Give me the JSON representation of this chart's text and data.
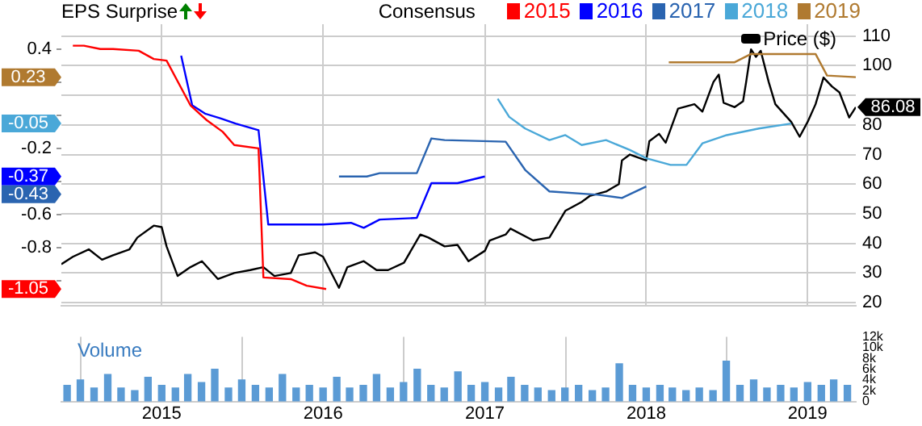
{
  "chart_data": [
    {
      "type": "line",
      "title": "EPS Surprise",
      "legend_title": "Consensus",
      "legend": "top",
      "grid": true,
      "marker": "none",
      "tick_labels": "y",
      "xlim": [
        "2014-05-19",
        "2019-04-20"
      ],
      "xticks": [
        "2015",
        "2016",
        "2017",
        "2018",
        "2019"
      ],
      "ylim": [
        -1.15,
        0.55
      ],
      "yticks": [
        0.4,
        {
          "value": 0.2,
          "label": null
        },
        {
          "value": 0,
          "label": null
        },
        -0.2,
        {
          "value": -0.4,
          "label": null
        },
        -0.6,
        -0.8,
        {
          "value": -1,
          "label": null
        }
      ],
      "y2lim": [
        19,
        114
      ],
      "y2ticks": [
        20,
        30,
        40,
        50,
        60,
        70,
        80,
        {
          "value": 90,
          "label": null
        },
        100,
        110
      ],
      "annotations": [
        "-1.05",
        "-0.37",
        "-0.43",
        "-0.05",
        "0.23",
        "86.08"
      ],
      "series": [
        {
          "name": "2015",
          "color": "#ff0000",
          "axis": "y",
          "x": [
            "2014-06-14",
            "2014-07-09",
            "2014-08-15",
            "2014-09-13",
            "2014-11-10",
            "2014-12-14",
            "2015-01-12",
            "2015-03-07",
            "2015-04-13",
            "2015-05-19",
            "2015-06-14",
            "2015-08-08",
            "2015-08-19",
            "2015-10-20",
            "2015-11-25",
            "2016-01-08"
          ],
          "values": [
            0.42,
            0.42,
            0.4,
            0.4,
            0.39,
            0.34,
            0.33,
            0.06,
            -0.03,
            -0.1,
            -0.18,
            -0.2,
            -0.98,
            -0.99,
            -1.03,
            -1.05
          ]
        },
        {
          "name": "2016",
          "color": "#0000ff",
          "axis": "y",
          "x": [
            "2015-02-14",
            "2015-03-11",
            "2015-04-09",
            "2015-05-15",
            "2015-06-17",
            "2015-08-08",
            "2015-08-30",
            "2016-01-01",
            "2016-03-04",
            "2016-04-02",
            "2016-05-08",
            "2016-07-31",
            "2016-09-02",
            "2016-10-31",
            "2017-01-01"
          ],
          "values": [
            0.36,
            0.06,
            0.01,
            -0.02,
            -0.05,
            -0.09,
            -0.66,
            -0.66,
            -0.65,
            -0.68,
            -0.63,
            -0.62,
            -0.41,
            -0.41,
            -0.37
          ]
        },
        {
          "name": "2017",
          "color": "#2a64b0",
          "axis": "y",
          "x": [
            "2016-02-06",
            "2016-04-09",
            "2016-05-08",
            "2016-07-31",
            "2016-09-02",
            "2016-10-02",
            "2017-02-17",
            "2017-04-02",
            "2017-05-27",
            "2017-09-13",
            "2017-11-07",
            "2018-01-01"
          ],
          "values": [
            -0.37,
            -0.37,
            -0.35,
            -0.35,
            -0.14,
            -0.15,
            -0.16,
            -0.33,
            -0.46,
            -0.48,
            -0.5,
            -0.43
          ]
        },
        {
          "name": "2018",
          "color": "#4aa8d8",
          "axis": "y",
          "x": [
            "2017-01-30",
            "2017-02-25",
            "2017-04-02",
            "2017-05-27",
            "2017-07-02",
            "2017-08-08",
            "2017-10-02",
            "2017-11-25",
            "2018-01-01",
            "2018-02-25",
            "2018-04-02",
            "2018-05-08",
            "2018-07-02",
            "2018-09-13",
            "2018-11-25"
          ],
          "values": [
            0.1,
            -0.01,
            -0.08,
            -0.15,
            -0.12,
            -0.18,
            -0.15,
            -0.21,
            -0.26,
            -0.3,
            -0.3,
            -0.17,
            -0.12,
            -0.08,
            -0.05
          ]
        },
        {
          "name": "2019",
          "color": "#b07a30",
          "axis": "y",
          "x": [
            "2018-02-21",
            "2018-07-20",
            "2018-08-26",
            "2019-01-19",
            "2019-02-14",
            "2019-04-20"
          ],
          "values": [
            0.32,
            0.32,
            0.37,
            0.37,
            0.24,
            0.23
          ]
        },
        {
          "name": "Price ($)",
          "color": "#000000",
          "axis": "y2",
          "x": [
            "2014-05-19",
            "2014-06-14",
            "2014-07-20",
            "2014-08-19",
            "2014-09-13",
            "2014-10-20",
            "2014-11-07",
            "2014-12-14",
            "2015-01-01",
            "2015-01-12",
            "2015-02-06",
            "2015-03-07",
            "2015-04-02",
            "2015-05-08",
            "2015-06-14",
            "2015-07-20",
            "2015-08-19",
            "2015-09-13",
            "2015-10-20",
            "2015-11-07",
            "2015-12-14",
            "2016-01-01",
            "2016-02-06",
            "2016-02-25",
            "2016-04-02",
            "2016-05-01",
            "2016-05-27",
            "2016-07-02",
            "2016-08-08",
            "2016-08-26",
            "2016-10-02",
            "2016-10-31",
            "2016-11-25",
            "2017-01-01",
            "2017-01-12",
            "2017-02-17",
            "2017-02-28",
            "2017-04-20",
            "2017-05-27",
            "2017-07-02",
            "2017-08-08",
            "2017-08-26",
            "2017-10-02",
            "2017-10-31",
            "2017-11-07",
            "2017-11-25",
            "2018-01-01",
            "2018-01-08",
            "2018-01-30",
            "2018-02-14",
            "2018-03-14",
            "2018-04-20",
            "2018-05-08",
            "2018-06-02",
            "2018-06-14",
            "2018-06-25",
            "2018-07-20",
            "2018-08-08",
            "2018-08-15",
            "2018-08-26",
            "2018-09-06",
            "2018-09-17",
            "2018-10-05",
            "2018-10-20",
            "2018-11-25",
            "2018-12-14",
            "2019-01-01",
            "2019-01-19",
            "2019-02-06",
            "2019-02-25",
            "2019-03-14",
            "2019-04-05",
            "2019-04-20"
          ],
          "values": [
            33,
            35.5,
            38,
            34.5,
            36,
            38,
            42,
            46,
            45.5,
            39,
            29,
            32,
            34,
            28,
            30,
            31,
            32,
            29,
            30,
            36,
            37,
            35.5,
            25,
            32,
            34,
            31,
            31,
            33.5,
            43,
            42,
            39,
            39.5,
            34,
            37.5,
            41,
            43,
            45,
            41,
            42,
            51,
            54,
            56,
            57.5,
            60,
            68,
            70,
            68,
            74.5,
            77,
            74,
            85.5,
            87,
            84.5,
            94.5,
            97,
            87.5,
            86,
            88,
            94.5,
            105.5,
            103,
            105,
            94.5,
            87,
            81,
            76,
            81,
            87,
            96,
            93,
            91,
            82.5,
            86
          ]
        }
      ]
    },
    {
      "type": "bar",
      "ylabel": "Volume",
      "grid": "x",
      "color": "#5b9bd5",
      "xlim": [
        "2014-05-19",
        "2019-04-20"
      ],
      "xticks": [
        "2015",
        "2016",
        "2017",
        "2018",
        "2019"
      ],
      "ylim": [
        0,
        12000
      ],
      "yticks": [
        0,
        {
          "value": 2000,
          "label": "2k"
        },
        {
          "value": 4000,
          "label": "4k"
        },
        {
          "value": 6000,
          "label": "6k"
        },
        {
          "value": 8000,
          "label": "8k"
        },
        {
          "value": 10000,
          "label": "10k"
        },
        {
          "value": 12000,
          "label": "12k"
        }
      ],
      "x": [
        "2014-06",
        "2014-07",
        "2014-08",
        "2014-09",
        "2014-10",
        "2014-11",
        "2014-12",
        "2015-01",
        "2015-02",
        "2015-03",
        "2015-04",
        "2015-05",
        "2015-06",
        "2015-07",
        "2015-08",
        "2015-09",
        "2015-10",
        "2015-11",
        "2015-12",
        "2016-01",
        "2016-02",
        "2016-03",
        "2016-04",
        "2016-05",
        "2016-06",
        "2016-07",
        "2016-08",
        "2016-09",
        "2016-10",
        "2016-11",
        "2016-12",
        "2017-01",
        "2017-02",
        "2017-03",
        "2017-04",
        "2017-05",
        "2017-06",
        "2017-07",
        "2017-08",
        "2017-09",
        "2017-10",
        "2017-11",
        "2017-12",
        "2018-01",
        "2018-02",
        "2018-03",
        "2018-04",
        "2018-05",
        "2018-06",
        "2018-07",
        "2018-08",
        "2018-09",
        "2018-10",
        "2018-11",
        "2018-12",
        "2019-01",
        "2019-02",
        "2019-03",
        "2019-04"
      ],
      "values": [
        3000,
        4000,
        2500,
        5000,
        2500,
        2000,
        4500,
        3000,
        2500,
        5000,
        3500,
        6000,
        2500,
        4000,
        3000,
        2500,
        5000,
        2500,
        3000,
        2500,
        4500,
        2500,
        3000,
        5000,
        2500,
        3500,
        6000,
        3000,
        2500,
        5500,
        3000,
        3500,
        2500,
        4500,
        3000,
        2500,
        2000,
        2500,
        3000,
        2000,
        2500,
        7000,
        3000,
        2500,
        3000,
        2500,
        2000,
        2500,
        2000,
        7500,
        3000,
        4000,
        2500,
        3000,
        2500,
        3500,
        3000,
        4000,
        3000
      ]
    }
  ]
}
